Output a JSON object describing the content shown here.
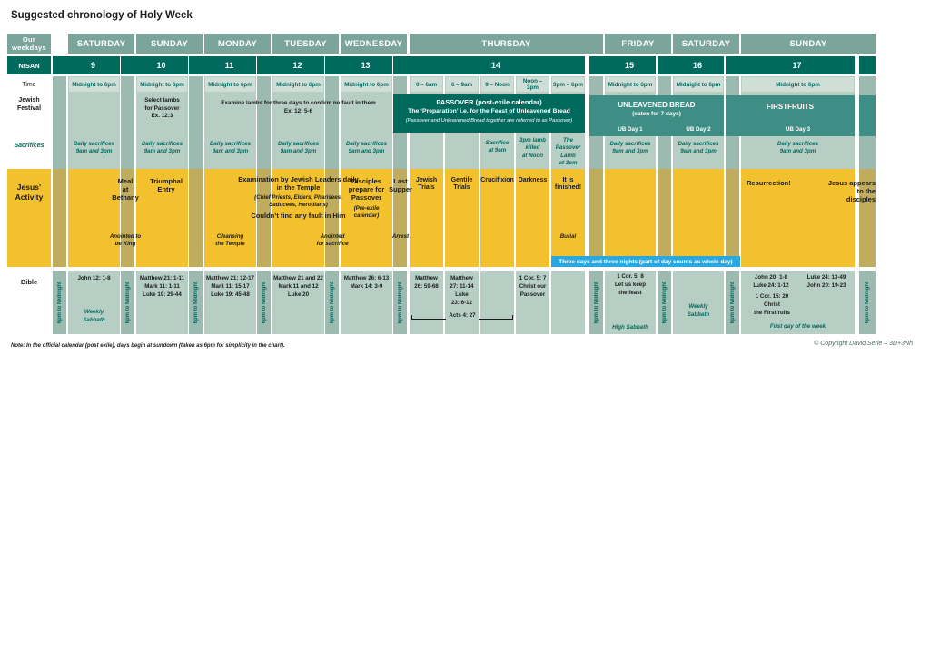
{
  "title": "Suggested chronology of Holy Week",
  "row_labels": {
    "weekdays": "Our weekdays",
    "nisan": "NISAN",
    "time": "Time",
    "festival": "Jewish\nFestival",
    "sacrifices": "Sacrifices",
    "activity": "Jesus’\nActivity",
    "bible": "Bible"
  },
  "weekday_headers": [
    "SATURDAY",
    "SUNDAY",
    "MONDAY",
    "TUESDAY",
    "WEDNESDAY",
    "THURSDAY",
    "FRIDAY",
    "SATURDAY",
    "SUNDAY"
  ],
  "nisan_numbers": [
    "9",
    "10",
    "11",
    "12",
    "13",
    "14",
    "15",
    "16",
    "17"
  ],
  "time_row": {
    "midnight": "Midnight to 6pm",
    "evening": "6pm to Midnight",
    "thursday_slots": [
      "0 – 6am",
      "6 – 9am",
      "9 – Noon",
      "Noon – 3pm",
      "3pm – 6pm"
    ]
  },
  "festival_row": {
    "select_lambs": "Select lambs\nfor Passover\nEx. 12:3",
    "examine_lambs": "Examine lambs for three days to confirm no fault in them\nEx. 12: 5-6",
    "passover_title": "PASSOVER (post-exile calendar)",
    "passover_sub": "The ‘Preparation’ i.e. for the Feast of Unleavened Bread",
    "passover_note": "(Passover and Unleavened Bread together are referred to as Passover)",
    "ub_title": "UNLEAVENED BREAD",
    "ub_sub": "(eaten for 7 days)",
    "ub_day1": "UB Day 1",
    "ub_day2": "UB Day 2",
    "ub_day3": "UB Day 3",
    "firstfruits": "FIRSTFRUITS"
  },
  "sacrifices_row": {
    "daily": "Daily sacrifices\n9am and 3pm",
    "at9": "Sacrifice\nat 9am",
    "lamb_noon": "3pm lamb\nkilled\nat Noon",
    "lamb_3pm": "The Passover\nLamb\nat 3pm"
  },
  "activity_row": {
    "meal": "Meal\nat\nBethany",
    "triumphal": "Triumphal\nEntry",
    "anointed_king": "Anointed to\nbe King",
    "examination": "Examination by Jewish Leaders daily\nin the Temple",
    "leaders": "(Chief Priests, Elders, Pharisees,\nSaducees, Herodians)",
    "no_fault": "Couldn’t find any fault in Him",
    "cleansing": "Cleansing\nthe Temple",
    "anointed_sacrifice": "Anointed\nfor sacrifice",
    "disciples": "Disciples\nprepare for\nPassover",
    "pre_exile": "(Pre-exile\ncalendar)",
    "last_supper": "Last\nSupper",
    "arrest": "Arrest",
    "jewish_trials": "Jewish\nTrials",
    "gentile_trials": "Gentile\nTrials",
    "crucifixion": "Crucifixion",
    "darkness": "Darkness",
    "finished": "It is\nfinished!",
    "burial": "Burial",
    "resurrection": "Resurrection!",
    "appears": "Jesus appears\nto the\ndisciples",
    "banner": "Three days and three nights (part of day counts as whole day)"
  },
  "bible_row": {
    "sat1": "John 12: 1-8",
    "weekly_sabbath1": "Weekly\nSabbath",
    "sun1": "Matthew 21: 1-11\nMark 11: 1-11\nLuke 19: 29-44",
    "mon": "Matthew 21: 12-17\nMark 11: 15-17\nLuke 19: 45-48",
    "tue": "Matthew 21 and 22\nMark 11 and 12\nLuke 20",
    "wed": "Matthew 26: 6-13\nMark 14: 3-9",
    "thu1": "Matthew\n26: 59-68",
    "thu2": "Matthew\n27: 11-14\nLuke\n23: 6-12",
    "acts": "Acts 4: 27",
    "thu4": "1 Cor. 5: 7\nChrist our\nPassover",
    "fri": "1 Cor. 5: 8\nLet us keep\nthe feast",
    "high_sabbath": "High Sabbath",
    "sat2": "Weekly\nSabbath",
    "sun2a": "John 20: 1-8\nLuke 24: 1-12",
    "sun2b": "Luke 24: 13-49\nJohn 20: 19-23",
    "firstfruits_ref": "1 Cor. 15: 20\nChrist\nthe Firstfruits",
    "first_day": "First day of the week"
  },
  "footer": {
    "note": "Note: In the official calendar (post exile), days begin at sundown (taken as 6pm for simplicity in the chart).",
    "copyright": "© Copyright David Serle – 3D+3Nh"
  },
  "colors": {
    "dark_teal": "#00695E",
    "medium_teal": "#3F8E86",
    "header_green": "#7BA49A",
    "cell_green": "#B7CEC5",
    "strip_green": "#9CBAB0",
    "time_box_green": "#CFDFD7",
    "yellow": "#F3C12D",
    "olive_strip": "#BFAC5D",
    "banner_blue": "#29A8E0",
    "teal_text": "#00695E"
  }
}
